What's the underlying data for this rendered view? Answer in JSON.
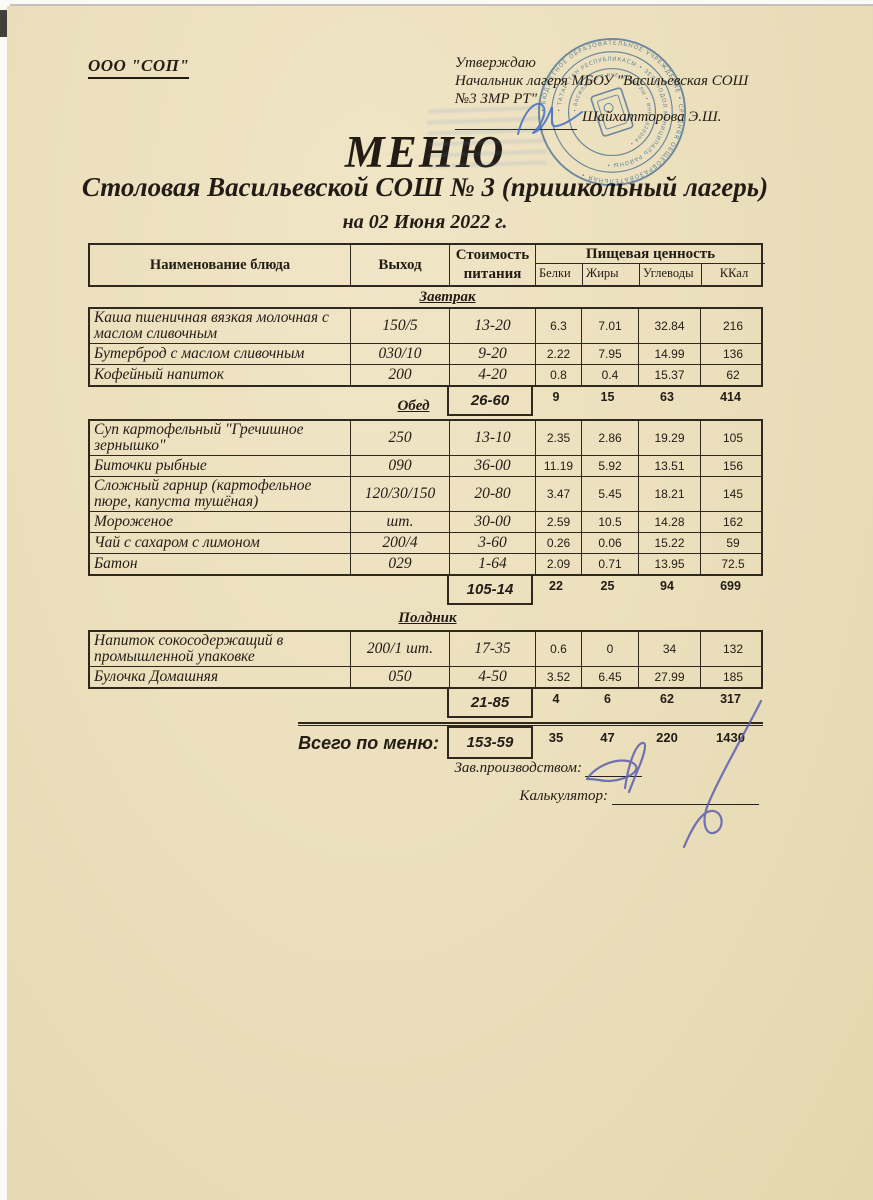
{
  "page": {
    "org": "ООО \"СОП\"",
    "approve": {
      "line1": "Утверждаю",
      "line2": "Начальник лагеря МБОУ \"Васильевская СОШ",
      "line3": "№3 ЗМР РТ\"",
      "signer": "Шайхатторова Э.Ш."
    },
    "title": "МЕНЮ",
    "subtitle": "Столовая Васильевской  СОШ  № 3 (пришкольный лагерь)",
    "date_line": "на 02 Июня 2022 г.",
    "stamp": {
      "color": "#4d7ec5",
      "ring_outer": "• БЮДЖЕТНОЕ ОБРАЗОВАТЕЛЬНОЕ УЧРЕЖДЕНИЕ • СРЕДНЯЯ ОБЩЕОБРАЗОВАТЕЛЬНАЯ •",
      "ring_middle": "• ТАТАРСТАН РЕСПУБЛИКАСЫ • ЗЕЛЕНОДОЛ МУНИЦИПАЛЬ РАЙОНЫ •",
      "ring_inner": "• ВАСИЛЬЕВО 3 НЧЕ НОМЕРЛЫ • ИНН 1620004 •"
    },
    "footer": {
      "manager_label": "Зав.производством:",
      "calculator_label": "Калькулятор:"
    }
  },
  "table": {
    "headers": {
      "name": "Наименование блюда",
      "out": "Выход",
      "cost_line1": "Стоимость",
      "cost_line2": "питания",
      "nutrition": "Пищевая ценность",
      "protein": "Белки",
      "fat": "Жиры",
      "carbs": "Углеводы",
      "kcal": "ККал"
    },
    "sections": [
      {
        "title": "Завтрак",
        "rows": [
          {
            "name": "Каша пшеничная вязкая молочная с маслом сливочным",
            "out": "150/5",
            "cost": "13-20",
            "protein": "6.3",
            "fat": "7.01",
            "carbs": "32.84",
            "kcal": "216"
          },
          {
            "name": "Бутерброд с маслом сливочным",
            "out": "030/10",
            "cost": "9-20",
            "protein": "2.22",
            "fat": "7.95",
            "carbs": "14.99",
            "kcal": "136"
          },
          {
            "name": "Кофейный напиток",
            "out": "200",
            "cost": "4-20",
            "protein": "0.8",
            "fat": "0.4",
            "carbs": "15.37",
            "kcal": "62"
          }
        ],
        "subtotal": {
          "cost": "26-60",
          "protein": "9",
          "fat": "15",
          "carbs": "63",
          "kcal": "414"
        }
      },
      {
        "title": "Обед",
        "rows": [
          {
            "name": "Суп картофельный \"Гречишное зернышко\"",
            "out": "250",
            "cost": "13-10",
            "protein": "2.35",
            "fat": "2.86",
            "carbs": "19.29",
            "kcal": "105"
          },
          {
            "name": "Биточки рыбные",
            "out": "090",
            "cost": "36-00",
            "protein": "11.19",
            "fat": "5.92",
            "carbs": "13.51",
            "kcal": "156"
          },
          {
            "name": "Сложный гарнир (картофельное пюре, капуста тушёная)",
            "out": "120/30/150",
            "cost": "20-80",
            "protein": "3.47",
            "fat": "5.45",
            "carbs": "18.21",
            "kcal": "145"
          },
          {
            "name": "Мороженое",
            "out": "шт.",
            "cost": "30-00",
            "protein": "2.59",
            "fat": "10.5",
            "carbs": "14.28",
            "kcal": "162"
          },
          {
            "name": "Чай с сахаром с лимоном",
            "out": "200/4",
            "cost": "3-60",
            "protein": "0.26",
            "fat": "0.06",
            "carbs": "15.22",
            "kcal": "59"
          },
          {
            "name": "Батон",
            "out": "029",
            "cost": "1-64",
            "protein": "2.09",
            "fat": "0.71",
            "carbs": "13.95",
            "kcal": "72.5"
          }
        ],
        "subtotal": {
          "cost": "105-14",
          "protein": "22",
          "fat": "25",
          "carbs": "94",
          "kcal": "699"
        }
      },
      {
        "title": "Полдник",
        "rows": [
          {
            "name": "Напиток сокосодержащий в промышленной упаковке",
            "out": "200/1 шт.",
            "cost": "17-35",
            "protein": "0.6",
            "fat": "0",
            "carbs": "34",
            "kcal": "132"
          },
          {
            "name": "Булочка Домашняя",
            "out": "050",
            "cost": "4-50",
            "protein": "3.52",
            "fat": "6.45",
            "carbs": "27.99",
            "kcal": "185"
          }
        ],
        "subtotal": {
          "cost": "21-85",
          "protein": "4",
          "fat": "6",
          "carbs": "62",
          "kcal": "317"
        }
      }
    ],
    "total": {
      "label": "Всего по меню:",
      "cost": "153-59",
      "protein": "35",
      "fat": "47",
      "carbs": "220",
      "kcal": "1430"
    }
  }
}
